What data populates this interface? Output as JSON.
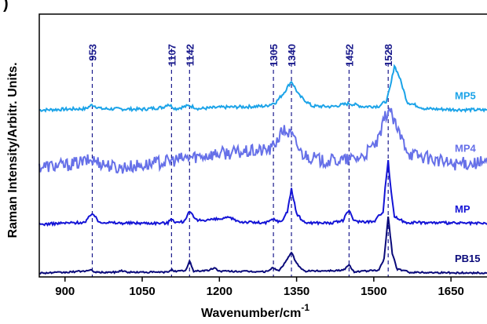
{
  "panel_label": ")",
  "chart_data": {
    "type": "line",
    "title": "",
    "xlabel": "Wavenumber/cm",
    "xlabel_superscript": "-1",
    "ylabel": "Raman Intensity/Arbitr. Units.",
    "xlim": [
      850,
      1720
    ],
    "ylim": [
      0,
      1
    ],
    "x_ticks": [
      900,
      1050,
      1200,
      1350,
      1500,
      1650
    ],
    "y_ticks_shown": false,
    "grid": false,
    "legend": "inline-right",
    "peaks": [
      953,
      1107,
      1142,
      1305,
      1340,
      1452,
      1528
    ],
    "series": [
      {
        "name": "MP5",
        "color": "#1ba3e8",
        "x": [
          850,
          900,
          940,
          953,
          970,
          1050,
          1090,
          1100,
          1115,
          1142,
          1160,
          1200,
          1260,
          1290,
          1310,
          1325,
          1340,
          1355,
          1380,
          1420,
          1452,
          1480,
          1510,
          1525,
          1533,
          1540,
          1550,
          1565,
          1600,
          1650,
          1720
        ],
        "y": [
          0.635,
          0.638,
          0.64,
          0.655,
          0.64,
          0.638,
          0.645,
          0.658,
          0.64,
          0.652,
          0.64,
          0.645,
          0.648,
          0.65,
          0.665,
          0.7,
          0.745,
          0.69,
          0.65,
          0.648,
          0.66,
          0.648,
          0.65,
          0.67,
          0.73,
          0.805,
          0.76,
          0.665,
          0.64,
          0.637,
          0.635
        ]
      },
      {
        "name": "MP4",
        "color": "#6670e8",
        "x": [
          850,
          900,
          953,
          1000,
          1050,
          1100,
          1142,
          1200,
          1250,
          1300,
          1325,
          1340,
          1360,
          1400,
          1450,
          1480,
          1510,
          1522,
          1530,
          1545,
          1570,
          1600,
          1650,
          1720
        ],
        "y": [
          0.42,
          0.425,
          0.445,
          0.415,
          0.425,
          0.44,
          0.455,
          0.47,
          0.475,
          0.485,
          0.56,
          0.54,
          0.47,
          0.44,
          0.445,
          0.46,
          0.52,
          0.61,
          0.64,
          0.56,
          0.47,
          0.455,
          0.43,
          0.435
        ]
      },
      {
        "name": "MP",
        "color": "#1414d6",
        "x": [
          850,
          900,
          940,
          953,
          965,
          1000,
          1100,
          1107,
          1115,
          1130,
          1142,
          1155,
          1200,
          1220,
          1240,
          1290,
          1305,
          1320,
          1332,
          1340,
          1350,
          1365,
          1420,
          1440,
          1452,
          1462,
          1500,
          1518,
          1523,
          1528,
          1533,
          1540,
          1560,
          1650,
          1720
        ],
        "y": [
          0.2,
          0.205,
          0.208,
          0.245,
          0.21,
          0.205,
          0.205,
          0.225,
          0.207,
          0.21,
          0.248,
          0.215,
          0.22,
          0.225,
          0.21,
          0.205,
          0.22,
          0.208,
          0.25,
          0.335,
          0.24,
          0.207,
          0.205,
          0.215,
          0.255,
          0.212,
          0.21,
          0.25,
          0.36,
          0.44,
          0.34,
          0.23,
          0.208,
          0.205,
          0.203
        ]
      },
      {
        "name": "PB15",
        "color": "#0a0a7a",
        "x": [
          850,
          900,
          953,
          960,
          1000,
          1010,
          1020,
          1100,
          1107,
          1115,
          1135,
          1142,
          1150,
          1180,
          1190,
          1200,
          1290,
          1305,
          1315,
          1330,
          1340,
          1350,
          1365,
          1440,
          1452,
          1462,
          1510,
          1520,
          1528,
          1536,
          1545,
          1570,
          1650,
          1720
        ],
        "y": [
          0.015,
          0.017,
          0.025,
          0.017,
          0.018,
          0.025,
          0.018,
          0.018,
          0.03,
          0.02,
          0.025,
          0.06,
          0.022,
          0.025,
          0.035,
          0.022,
          0.02,
          0.035,
          0.022,
          0.06,
          0.095,
          0.05,
          0.022,
          0.025,
          0.045,
          0.02,
          0.025,
          0.07,
          0.23,
          0.09,
          0.03,
          0.018,
          0.016,
          0.015
        ]
      }
    ]
  }
}
